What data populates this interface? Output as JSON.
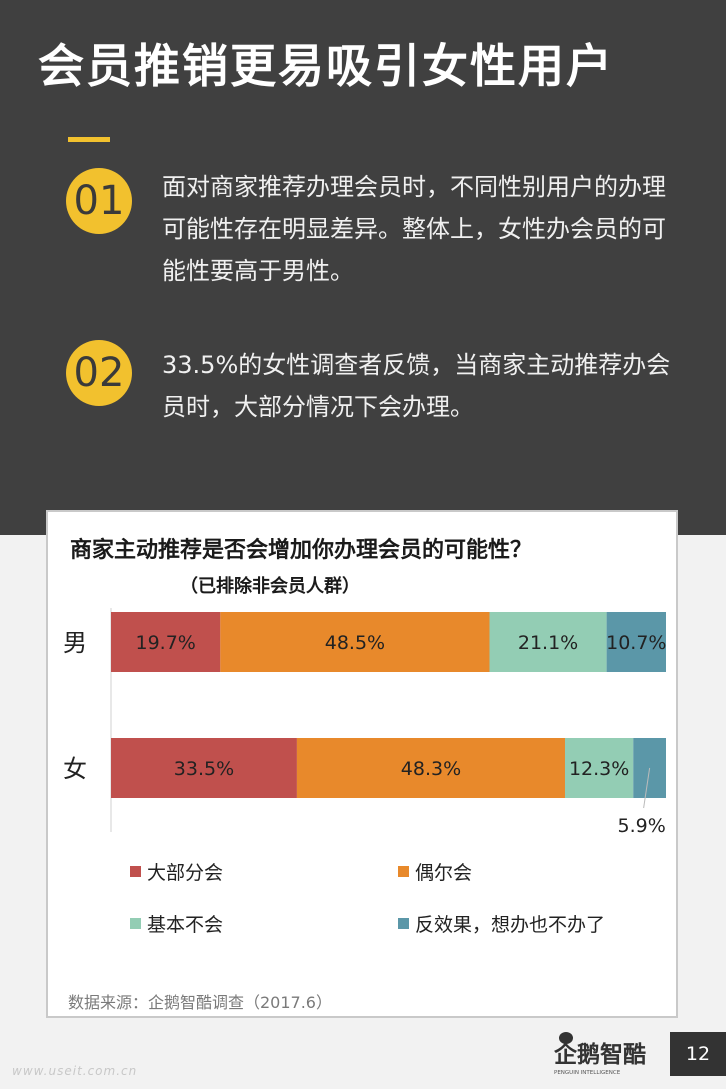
{
  "header": {
    "title": "会员推销更易吸引女性用户",
    "points": [
      {
        "badge": "01",
        "text": "面对商家推荐办理会员时，不同性别用户的办理可能性存在明显差异。整体上，女性办会员的可能性要高于男性。"
      },
      {
        "badge": "02",
        "text": "33.5%的女性调查者反馈，当商家主动推荐办会员时，大部分情况下会办理。"
      }
    ]
  },
  "colors": {
    "accent": "#f2c12e",
    "dark_bg": "#404040"
  },
  "chart_data": {
    "type": "bar",
    "orientation": "horizontal-stacked-100",
    "title": "商家主动推荐是否会增加你办理会员的可能性？",
    "subtitle": "（已排除非会员人群）",
    "categories": [
      "男",
      "女"
    ],
    "series": [
      {
        "name": "大部分会",
        "color": "#c0504d",
        "values": [
          19.7,
          33.5
        ],
        "labels": [
          "19.7%",
          "33.5%"
        ]
      },
      {
        "name": "偶尔会",
        "color": "#e8892b",
        "values": [
          48.5,
          48.3
        ],
        "labels": [
          "48.5%",
          "48.3%"
        ]
      },
      {
        "name": "基本不会",
        "color": "#93cdb4",
        "values": [
          21.1,
          12.3
        ],
        "labels": [
          "21.1%",
          "12.3%"
        ]
      },
      {
        "name": "反效果，想办也不办了",
        "color": "#5b97a8",
        "values": [
          10.7,
          5.9
        ],
        "labels": [
          "10.7%",
          "5.9%"
        ]
      }
    ],
    "xlim": [
      0,
      100
    ],
    "legend": "bottom",
    "grid": false
  },
  "source": "数据来源：企鹅智酷调查（2017.6）",
  "brand": {
    "logo_text": "企鹅智酷",
    "logo_sub": "PENGUIN INTELLIGENCE"
  },
  "page_number": "12",
  "watermark": "www.useit.com.cn"
}
